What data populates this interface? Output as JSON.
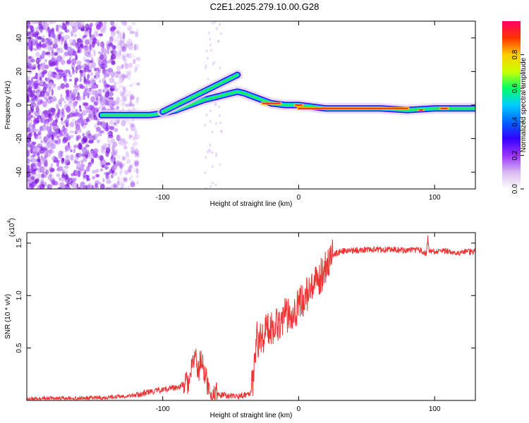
{
  "title": "C2E1.2025.279.10.00.G28",
  "chart_data": [
    {
      "type": "heatmap",
      "panel": "spectrogram",
      "xlabel": "Height of straight line (km)",
      "ylabel": "Frequency (Hz)",
      "xlim": [
        -200,
        130
      ],
      "ylim": [
        -50,
        50
      ],
      "xticks": [
        -100,
        0,
        100
      ],
      "yticks": [
        -40,
        -20,
        0,
        20,
        40
      ],
      "colorbar": {
        "label": "Normalized spectral amplitude",
        "range": [
          0,
          1
        ],
        "ticks": [
          "0.0",
          "0.2",
          "0.4",
          "0.6",
          "0.8"
        ],
        "colors": [
          "#ffffff",
          "#d8b8f0",
          "#9933ff",
          "#3300ff",
          "#0066ff",
          "#00ccff",
          "#00ff66",
          "#ccff00",
          "#ffcc00",
          "#ff3300",
          "#ff0066"
        ]
      },
      "traces": [
        {
          "name": "lower branch",
          "points": [
            [
              -145,
              -6
            ],
            [
              -130,
              -6
            ],
            [
              -120,
              -6
            ],
            [
              -110,
              -6
            ],
            [
              -100,
              -5
            ],
            [
              -90,
              -3
            ],
            [
              -80,
              0
            ],
            [
              -70,
              3
            ],
            [
              -60,
              5
            ],
            [
              -50,
              7
            ],
            [
              -45,
              8
            ],
            [
              -40,
              7
            ],
            [
              -30,
              4
            ],
            [
              -20,
              1
            ],
            [
              -10,
              0
            ],
            [
              0,
              0
            ],
            [
              10,
              -1
            ],
            [
              20,
              -2
            ],
            [
              40,
              -2
            ],
            [
              60,
              -2
            ],
            [
              80,
              -3
            ],
            [
              100,
              -2
            ],
            [
              130,
              -2
            ]
          ]
        },
        {
          "name": "upper branch",
          "points": [
            [
              -100,
              -4
            ],
            [
              -90,
              0
            ],
            [
              -80,
              4
            ],
            [
              -70,
              8
            ],
            [
              -60,
              12
            ],
            [
              -50,
              16
            ],
            [
              -45,
              18
            ]
          ]
        }
      ]
    },
    {
      "type": "line",
      "panel": "snr",
      "xlabel": "Height of straight line (km)",
      "ylabel": "SNR (10 * v/v)",
      "scale_label": "(x10",
      "scale_exp": "4",
      "scale_close": ")",
      "xlim": [
        -200,
        130
      ],
      "ylim": [
        0,
        1.6
      ],
      "xticks": [
        -100,
        0,
        100
      ],
      "yticks": [
        0.5,
        1.0,
        1.5
      ],
      "ytick_labels": [
        "0.5",
        "1.0",
        "1.5"
      ],
      "color": "#ee3333",
      "series": [
        {
          "name": "SNR",
          "x": [
            -200,
            -180,
            -160,
            -140,
            -130,
            -120,
            -110,
            -100,
            -95,
            -90,
            -85,
            -80,
            -78,
            -76,
            -74,
            -72,
            -70,
            -68,
            -66,
            -64,
            -60,
            -55,
            -50,
            -45,
            -40,
            -35,
            -34,
            -33,
            -32,
            -31,
            -30,
            -25,
            -20,
            -15,
            -10,
            -5,
            0,
            5,
            10,
            15,
            20,
            25,
            30,
            40,
            50,
            60,
            70,
            80,
            90,
            94,
            95,
            96,
            100,
            110,
            120,
            130
          ],
          "y": [
            0.01,
            0.02,
            0.02,
            0.03,
            0.04,
            0.05,
            0.08,
            0.1,
            0.12,
            0.12,
            0.15,
            0.18,
            0.35,
            0.45,
            0.25,
            0.4,
            0.3,
            0.2,
            0.1,
            0.08,
            0.05,
            0.05,
            0.04,
            0.04,
            0.05,
            0.08,
            0.15,
            0.35,
            0.5,
            0.6,
            0.55,
            0.65,
            0.7,
            0.75,
            0.8,
            0.85,
            0.9,
            1.0,
            1.05,
            1.15,
            1.3,
            1.38,
            1.42,
            1.43,
            1.44,
            1.44,
            1.44,
            1.43,
            1.43,
            1.4,
            1.55,
            1.42,
            1.42,
            1.42,
            1.41,
            1.42
          ]
        }
      ]
    }
  ]
}
